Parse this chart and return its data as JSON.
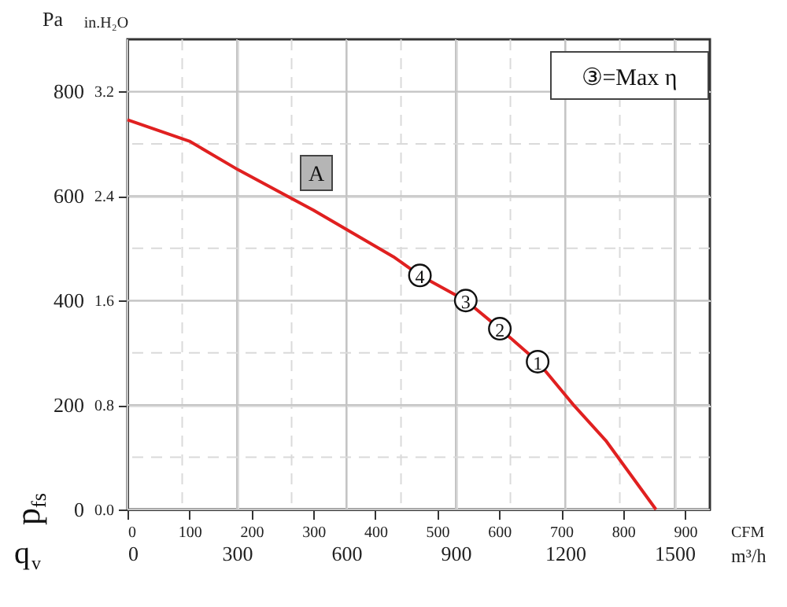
{
  "chart_data": {
    "type": "line",
    "xlabel": "CFM",
    "x2label": "m³/h",
    "ylabel": "Pa",
    "y2label": "in.H₂O",
    "x": [
      0,
      100,
      179,
      300,
      429,
      472,
      546,
      601,
      662,
      720,
      772,
      853
    ],
    "series": [
      {
        "color": "#e02020",
        "values": [
          746,
          705,
          650,
          573,
          484,
          448,
          400,
          346,
          283,
          200,
          132,
          0
        ]
      }
    ],
    "xlim": [
      0,
      940
    ],
    "xticks": [
      0,
      100,
      200,
      300,
      400,
      500,
      600,
      700,
      800,
      900
    ],
    "x2lim": [
      0,
      1597
    ],
    "x2ticks": [
      0,
      300,
      600,
      900,
      1200,
      1500
    ],
    "ylim": [
      0,
      900
    ],
    "yticks": [
      0,
      200,
      400,
      600,
      800
    ],
    "y2lim": [
      0,
      3.6
    ],
    "y2ticks": [
      {
        "value": 0,
        "label": "0.0"
      },
      0.8,
      1.6,
      2.4,
      3.2
    ],
    "grid": true,
    "marker": "none",
    "line_style": "solid",
    "annotations": [
      "③=Max η",
      "A",
      "p$_{fs}$",
      "q$_{v}$",
      {
        "text": "4",
        "x": 472,
        "y": 448
      },
      {
        "text": "3",
        "x": 546,
        "y": 400
      },
      {
        "text": "2",
        "x": 601,
        "y": 346
      },
      {
        "text": "1",
        "x": 662,
        "y": 283
      }
    ]
  }
}
